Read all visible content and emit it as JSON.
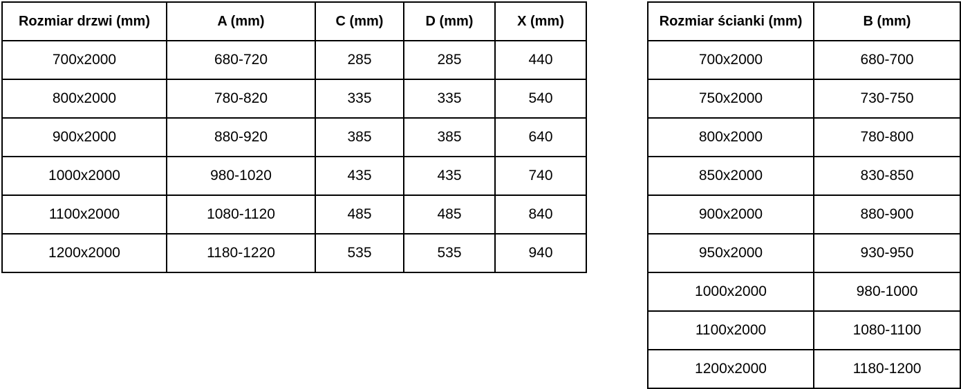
{
  "left_table": {
    "name": "door-size-table",
    "headers": [
      "Rozmiar drzwi (mm)",
      "A (mm)",
      "C (mm)",
      "D (mm)",
      "X (mm)"
    ],
    "rows": [
      [
        "700x2000",
        "680-720",
        "285",
        "285",
        "440"
      ],
      [
        "800x2000",
        "780-820",
        "335",
        "335",
        "540"
      ],
      [
        "900x2000",
        "880-920",
        "385",
        "385",
        "640"
      ],
      [
        "1000x2000",
        "980-1020",
        "435",
        "435",
        "740"
      ],
      [
        "1100x2000",
        "1080-1120",
        "485",
        "485",
        "840"
      ],
      [
        "1200x2000",
        "1180-1220",
        "535",
        "535",
        "940"
      ]
    ]
  },
  "right_table": {
    "name": "wall-panel-size-table",
    "headers": [
      "Rozmiar ścianki (mm)",
      "B (mm)"
    ],
    "rows": [
      [
        "700x2000",
        "680-700"
      ],
      [
        "750x2000",
        "730-750"
      ],
      [
        "800x2000",
        "780-800"
      ],
      [
        "850x2000",
        "830-850"
      ],
      [
        "900x2000",
        "880-900"
      ],
      [
        "950x2000",
        "930-950"
      ],
      [
        "1000x2000",
        "980-1000"
      ],
      [
        "1100x2000",
        "1080-1100"
      ],
      [
        "1200x2000",
        "1180-1200"
      ]
    ]
  },
  "colors": {
    "border": "#000000",
    "text": "#000000",
    "background": "#ffffff"
  }
}
